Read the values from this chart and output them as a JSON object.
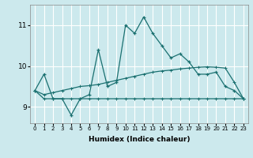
{
  "xlabel": "Humidex (Indice chaleur)",
  "bg_color": "#cce9ed",
  "grid_color": "#ffffff",
  "line_color": "#1a7070",
  "x_values": [
    0,
    1,
    2,
    3,
    4,
    5,
    6,
    7,
    8,
    9,
    10,
    11,
    12,
    13,
    14,
    15,
    16,
    17,
    18,
    19,
    20,
    21,
    22,
    23
  ],
  "line1_y": [
    9.4,
    9.8,
    9.2,
    9.2,
    8.8,
    9.2,
    9.3,
    10.4,
    9.5,
    9.6,
    11.0,
    10.8,
    11.2,
    10.8,
    10.5,
    10.2,
    10.3,
    10.1,
    9.8,
    9.8,
    9.85,
    9.5,
    9.4,
    9.2
  ],
  "line2_y": [
    9.4,
    9.2,
    9.2,
    9.2,
    9.2,
    9.2,
    9.2,
    9.2,
    9.2,
    9.2,
    9.2,
    9.2,
    9.2,
    9.2,
    9.2,
    9.2,
    9.2,
    9.2,
    9.2,
    9.2,
    9.2,
    9.2,
    9.2,
    9.2
  ],
  "line3_y": [
    9.4,
    9.3,
    9.35,
    9.4,
    9.45,
    9.5,
    9.52,
    9.55,
    9.6,
    9.65,
    9.7,
    9.75,
    9.8,
    9.85,
    9.88,
    9.9,
    9.93,
    9.95,
    9.97,
    9.98,
    9.97,
    9.95,
    9.6,
    9.2
  ],
  "ylim": [
    8.6,
    11.5
  ],
  "yticks": [
    9,
    10,
    11
  ],
  "xticks": [
    0,
    1,
    2,
    3,
    4,
    5,
    6,
    7,
    8,
    9,
    10,
    11,
    12,
    13,
    14,
    15,
    16,
    17,
    18,
    19,
    20,
    21,
    22,
    23
  ]
}
